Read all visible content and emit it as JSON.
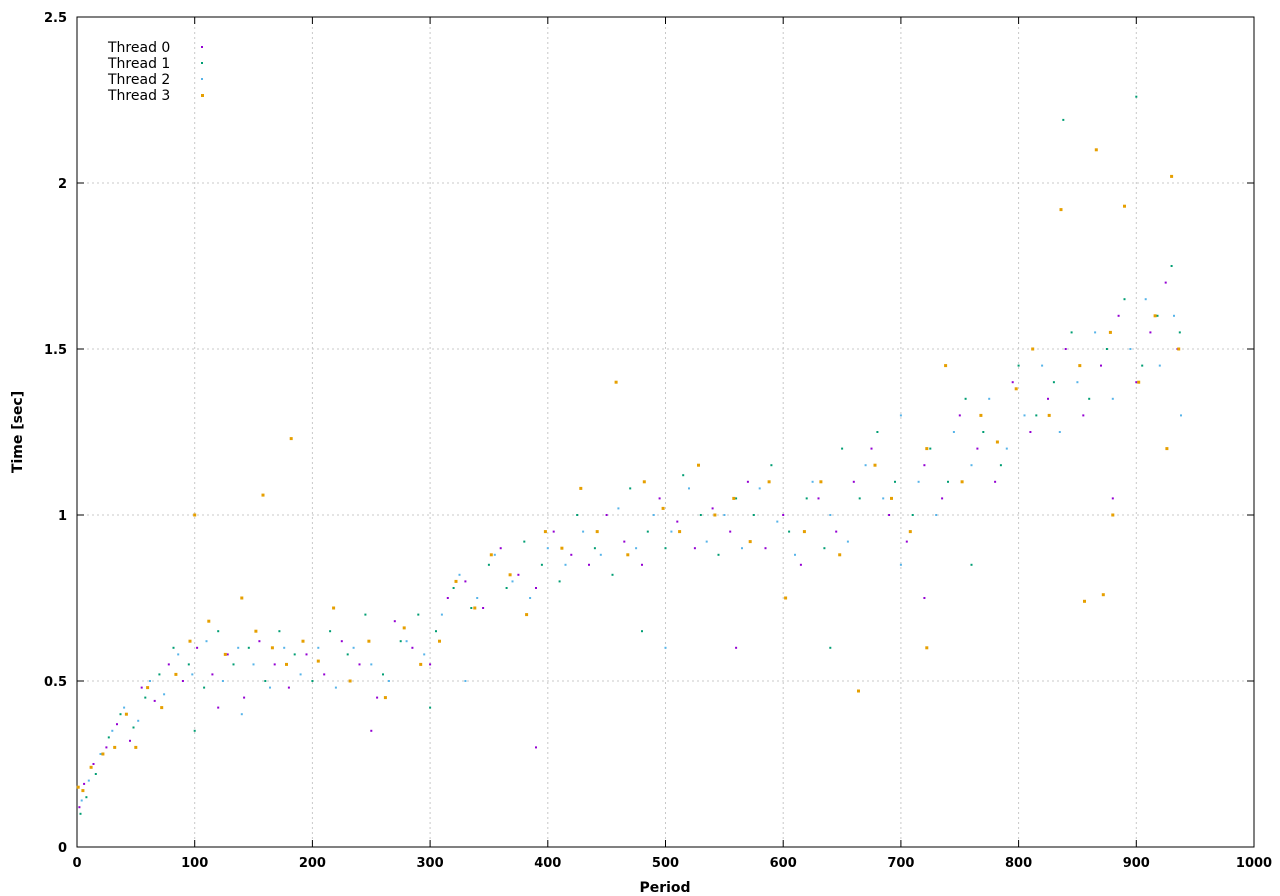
{
  "chart_data": {
    "type": "scatter",
    "title": "",
    "xlabel": "Period",
    "ylabel": "Time [sec]",
    "xlim": [
      0,
      1000
    ],
    "ylim": [
      0,
      2.5
    ],
    "grid": true,
    "legend_position": "top-left",
    "x_ticks": [
      "0",
      "100",
      "200",
      "300",
      "400",
      "500",
      "600",
      "700",
      "800",
      "900",
      "1000"
    ],
    "y_ticks": [
      "0",
      "0.5",
      "1",
      "1.5",
      "2",
      "2.5"
    ],
    "series": [
      {
        "name": "Thread 0",
        "color": "#9400d3",
        "points": [
          [
            2,
            0.12
          ],
          [
            6,
            0.19
          ],
          [
            14,
            0.25
          ],
          [
            25,
            0.3
          ],
          [
            34,
            0.37
          ],
          [
            45,
            0.32
          ],
          [
            55,
            0.48
          ],
          [
            66,
            0.44
          ],
          [
            78,
            0.55
          ],
          [
            90,
            0.5
          ],
          [
            102,
            0.6
          ],
          [
            115,
            0.52
          ],
          [
            128,
            0.58
          ],
          [
            142,
            0.45
          ],
          [
            155,
            0.62
          ],
          [
            168,
            0.55
          ],
          [
            180,
            0.48
          ],
          [
            195,
            0.58
          ],
          [
            210,
            0.52
          ],
          [
            225,
            0.62
          ],
          [
            240,
            0.55
          ],
          [
            255,
            0.45
          ],
          [
            270,
            0.68
          ],
          [
            285,
            0.6
          ],
          [
            300,
            0.55
          ],
          [
            315,
            0.75
          ],
          [
            330,
            0.8
          ],
          [
            345,
            0.72
          ],
          [
            360,
            0.9
          ],
          [
            375,
            0.82
          ],
          [
            390,
            0.78
          ],
          [
            405,
            0.95
          ],
          [
            420,
            0.88
          ],
          [
            435,
            0.85
          ],
          [
            450,
            1.0
          ],
          [
            465,
            0.92
          ],
          [
            480,
            0.85
          ],
          [
            495,
            1.05
          ],
          [
            510,
            0.98
          ],
          [
            525,
            0.9
          ],
          [
            540,
            1.02
          ],
          [
            555,
            0.95
          ],
          [
            570,
            1.1
          ],
          [
            585,
            0.9
          ],
          [
            600,
            1.0
          ],
          [
            615,
            0.85
          ],
          [
            630,
            1.05
          ],
          [
            645,
            0.95
          ],
          [
            660,
            1.1
          ],
          [
            675,
            1.2
          ],
          [
            690,
            1.0
          ],
          [
            705,
            0.92
          ],
          [
            720,
            1.15
          ],
          [
            735,
            1.05
          ],
          [
            750,
            1.3
          ],
          [
            765,
            1.2
          ],
          [
            780,
            1.1
          ],
          [
            795,
            1.4
          ],
          [
            810,
            1.25
          ],
          [
            825,
            1.35
          ],
          [
            840,
            1.5
          ],
          [
            855,
            1.3
          ],
          [
            870,
            1.45
          ],
          [
            885,
            1.6
          ],
          [
            900,
            1.4
          ],
          [
            912,
            1.55
          ],
          [
            925,
            1.7
          ],
          [
            935,
            1.5
          ],
          [
            120,
            0.42
          ],
          [
            250,
            0.35
          ],
          [
            390,
            0.3
          ],
          [
            560,
            0.6
          ],
          [
            720,
            0.75
          ],
          [
            880,
            1.05
          ]
        ]
      },
      {
        "name": "Thread 1",
        "color": "#009e73",
        "points": [
          [
            3,
            0.1
          ],
          [
            8,
            0.15
          ],
          [
            16,
            0.22
          ],
          [
            27,
            0.33
          ],
          [
            37,
            0.4
          ],
          [
            48,
            0.36
          ],
          [
            58,
            0.45
          ],
          [
            70,
            0.52
          ],
          [
            82,
            0.6
          ],
          [
            95,
            0.55
          ],
          [
            108,
            0.48
          ],
          [
            120,
            0.65
          ],
          [
            133,
            0.55
          ],
          [
            146,
            0.6
          ],
          [
            160,
            0.5
          ],
          [
            172,
            0.65
          ],
          [
            185,
            0.58
          ],
          [
            200,
            0.5
          ],
          [
            215,
            0.65
          ],
          [
            230,
            0.58
          ],
          [
            245,
            0.7
          ],
          [
            260,
            0.52
          ],
          [
            275,
            0.62
          ],
          [
            290,
            0.7
          ],
          [
            305,
            0.65
          ],
          [
            320,
            0.78
          ],
          [
            335,
            0.72
          ],
          [
            350,
            0.85
          ],
          [
            365,
            0.78
          ],
          [
            380,
            0.92
          ],
          [
            395,
            0.85
          ],
          [
            410,
            0.8
          ],
          [
            425,
            1.0
          ],
          [
            440,
            0.9
          ],
          [
            455,
            0.82
          ],
          [
            470,
            1.08
          ],
          [
            485,
            0.95
          ],
          [
            500,
            0.9
          ],
          [
            515,
            1.12
          ],
          [
            530,
            1.0
          ],
          [
            545,
            0.88
          ],
          [
            560,
            1.05
          ],
          [
            575,
            1.0
          ],
          [
            590,
            1.15
          ],
          [
            605,
            0.95
          ],
          [
            620,
            1.05
          ],
          [
            635,
            0.9
          ],
          [
            650,
            1.2
          ],
          [
            665,
            1.05
          ],
          [
            680,
            1.25
          ],
          [
            695,
            1.1
          ],
          [
            710,
            1.0
          ],
          [
            725,
            1.2
          ],
          [
            740,
            1.1
          ],
          [
            755,
            1.35
          ],
          [
            770,
            1.25
          ],
          [
            785,
            1.15
          ],
          [
            800,
            1.45
          ],
          [
            815,
            1.3
          ],
          [
            830,
            1.4
          ],
          [
            845,
            1.55
          ],
          [
            860,
            1.35
          ],
          [
            875,
            1.5
          ],
          [
            890,
            1.65
          ],
          [
            900,
            2.26
          ],
          [
            905,
            1.45
          ],
          [
            918,
            1.6
          ],
          [
            930,
            1.75
          ],
          [
            937,
            1.55
          ],
          [
            838,
            2.19
          ],
          [
            100,
            0.35
          ],
          [
            300,
            0.42
          ],
          [
            480,
            0.65
          ],
          [
            640,
            0.6
          ],
          [
            760,
            0.85
          ]
        ]
      },
      {
        "name": "Thread 2",
        "color": "#56b4e9",
        "points": [
          [
            4,
            0.14
          ],
          [
            10,
            0.2
          ],
          [
            20,
            0.28
          ],
          [
            30,
            0.35
          ],
          [
            40,
            0.42
          ],
          [
            52,
            0.38
          ],
          [
            62,
            0.5
          ],
          [
            74,
            0.46
          ],
          [
            86,
            0.58
          ],
          [
            98,
            0.52
          ],
          [
            110,
            0.62
          ],
          [
            124,
            0.5
          ],
          [
            137,
            0.6
          ],
          [
            150,
            0.55
          ],
          [
            164,
            0.48
          ],
          [
            176,
            0.6
          ],
          [
            190,
            0.52
          ],
          [
            205,
            0.6
          ],
          [
            220,
            0.48
          ],
          [
            235,
            0.6
          ],
          [
            250,
            0.55
          ],
          [
            265,
            0.5
          ],
          [
            280,
            0.62
          ],
          [
            295,
            0.58
          ],
          [
            310,
            0.7
          ],
          [
            325,
            0.82
          ],
          [
            340,
            0.75
          ],
          [
            355,
            0.88
          ],
          [
            370,
            0.8
          ],
          [
            385,
            0.75
          ],
          [
            400,
            0.9
          ],
          [
            415,
            0.85
          ],
          [
            430,
            0.95
          ],
          [
            445,
            0.88
          ],
          [
            460,
            1.02
          ],
          [
            475,
            0.9
          ],
          [
            490,
            1.0
          ],
          [
            505,
            0.95
          ],
          [
            520,
            1.08
          ],
          [
            535,
            0.92
          ],
          [
            550,
            1.0
          ],
          [
            565,
            0.9
          ],
          [
            580,
            1.08
          ],
          [
            595,
            0.98
          ],
          [
            610,
            0.88
          ],
          [
            625,
            1.1
          ],
          [
            640,
            1.0
          ],
          [
            655,
            0.92
          ],
          [
            670,
            1.15
          ],
          [
            685,
            1.05
          ],
          [
            700,
            1.3
          ],
          [
            715,
            1.1
          ],
          [
            730,
            1.0
          ],
          [
            745,
            1.25
          ],
          [
            760,
            1.15
          ],
          [
            775,
            1.35
          ],
          [
            790,
            1.2
          ],
          [
            805,
            1.3
          ],
          [
            820,
            1.45
          ],
          [
            835,
            1.25
          ],
          [
            850,
            1.4
          ],
          [
            865,
            1.55
          ],
          [
            880,
            1.35
          ],
          [
            895,
            1.5
          ],
          [
            908,
            1.65
          ],
          [
            920,
            1.45
          ],
          [
            932,
            1.6
          ],
          [
            938,
            1.3
          ],
          [
            140,
            0.4
          ],
          [
            330,
            0.5
          ],
          [
            500,
            0.6
          ],
          [
            700,
            0.85
          ]
        ]
      },
      {
        "name": "Thread 3",
        "color": "#e69f00",
        "points": [
          [
            1,
            0.18
          ],
          [
            5,
            0.17
          ],
          [
            12,
            0.24
          ],
          [
            22,
            0.28
          ],
          [
            32,
            0.3
          ],
          [
            42,
            0.4
          ],
          [
            50,
            0.3
          ],
          [
            60,
            0.48
          ],
          [
            72,
            0.42
          ],
          [
            84,
            0.52
          ],
          [
            96,
            0.62
          ],
          [
            100,
            1.0
          ],
          [
            112,
            0.68
          ],
          [
            126,
            0.58
          ],
          [
            140,
            0.75
          ],
          [
            152,
            0.65
          ],
          [
            158,
            1.06
          ],
          [
            166,
            0.6
          ],
          [
            178,
            0.55
          ],
          [
            182,
            1.23
          ],
          [
            192,
            0.62
          ],
          [
            205,
            0.56
          ],
          [
            218,
            0.72
          ],
          [
            232,
            0.5
          ],
          [
            248,
            0.62
          ],
          [
            262,
            0.45
          ],
          [
            278,
            0.66
          ],
          [
            292,
            0.55
          ],
          [
            308,
            0.62
          ],
          [
            322,
            0.8
          ],
          [
            338,
            0.72
          ],
          [
            352,
            0.88
          ],
          [
            368,
            0.82
          ],
          [
            382,
            0.7
          ],
          [
            398,
            0.95
          ],
          [
            412,
            0.9
          ],
          [
            428,
            1.08
          ],
          [
            442,
            0.95
          ],
          [
            458,
            1.4
          ],
          [
            468,
            0.88
          ],
          [
            482,
            1.1
          ],
          [
            498,
            1.02
          ],
          [
            512,
            0.95
          ],
          [
            528,
            1.15
          ],
          [
            542,
            1.0
          ],
          [
            558,
            1.05
          ],
          [
            572,
            0.92
          ],
          [
            588,
            1.1
          ],
          [
            602,
            0.75
          ],
          [
            618,
            0.95
          ],
          [
            632,
            1.1
          ],
          [
            648,
            0.88
          ],
          [
            664,
            0.47
          ],
          [
            678,
            1.15
          ],
          [
            692,
            1.05
          ],
          [
            708,
            0.95
          ],
          [
            722,
            1.2
          ],
          [
            738,
            1.45
          ],
          [
            752,
            1.1
          ],
          [
            768,
            1.3
          ],
          [
            782,
            1.22
          ],
          [
            798,
            1.38
          ],
          [
            812,
            1.5
          ],
          [
            826,
            1.3
          ],
          [
            836,
            1.92
          ],
          [
            852,
            1.45
          ],
          [
            866,
            2.1
          ],
          [
            878,
            1.55
          ],
          [
            890,
            1.93
          ],
          [
            902,
            1.4
          ],
          [
            916,
            1.6
          ],
          [
            926,
            1.2
          ],
          [
            930,
            2.02
          ],
          [
            936,
            1.5
          ],
          [
            856,
            0.74
          ],
          [
            872,
            0.76
          ],
          [
            880,
            1.0
          ],
          [
            722,
            0.6
          ]
        ]
      }
    ]
  }
}
